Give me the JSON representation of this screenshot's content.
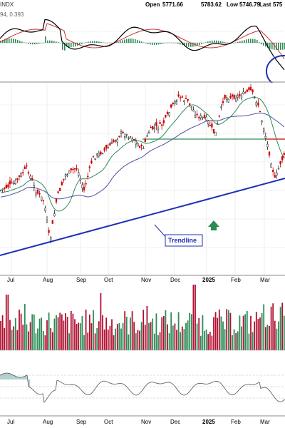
{
  "header": {
    "symbol": "INDX",
    "open_label": "Open",
    "open": "5771.66",
    "high_value": "5783.62",
    "low_label": "Low",
    "low": "5746.79",
    "last_label": "Last",
    "last": "575",
    "macd_readout": "94, 0.393"
  },
  "colors": {
    "macd_line": "#000000",
    "signal_line": "#cc3333",
    "histogram": "#2e8b57",
    "up_candle": "#1a1a1a",
    "down_candle": "#cc0000",
    "ma_short": "#2e8b57",
    "ma_long": "#5050a0",
    "trendline": "#1f2fb5",
    "support_line": "#2e8b57",
    "resistance_line": "#cc0000",
    "volume_up": "#2e8b57",
    "volume_down": "#b01030",
    "circle": "#1f2fb5"
  },
  "annotations": {
    "trendline_label": "Trendline"
  },
  "months": [
    "Jul",
    "Aug",
    "Sep",
    "Oct",
    "Nov",
    "Dec",
    "2025",
    "Feb",
    "Mar"
  ],
  "chart_data": [
    {
      "panel": "macd",
      "type": "line",
      "series": [],
      "note": "MACD panel: MACD line, signal line and histogram"
    },
    {
      "panel": "price",
      "type": "candlestick",
      "x": [
        "Jul",
        "Aug",
        "Sep",
        "Oct",
        "Nov",
        "Dec",
        "2025",
        "Feb",
        "Mar"
      ],
      "series": [
        {
          "values": [
            5590,
            5430,
            5610,
            5760,
            5720,
            6040,
            5900,
            6080,
            5620
          ]
        }
      ],
      "ma_short": [
        5510,
        5470,
        5550,
        5700,
        5760,
        5960,
        5930,
        6000,
        5700
      ],
      "ma_long": [
        5300,
        5350,
        5420,
        5560,
        5650,
        5820,
        5870,
        5940,
        5780
      ],
      "support_level": 5870,
      "trendline": {
        "from": [
          "Jun",
          5120
        ],
        "to": [
          "Mar",
          5640
        ]
      }
    },
    {
      "panel": "volume",
      "type": "bar",
      "categories": [
        "Jul",
        "Aug",
        "Sep",
        "Oct",
        "Nov",
        "Dec",
        "2025",
        "Feb",
        "Mar"
      ],
      "series": [
        {
          "values": [
            0.55,
            0.65,
            0.6,
            0.5,
            0.7,
            1.0,
            0.5,
            0.6,
            0.7
          ]
        }
      ]
    },
    {
      "panel": "oscillator",
      "type": "line",
      "series": [
        {
          "values": [
            0.6,
            0.2,
            0.65,
            0.7,
            0.5,
            0.4,
            0.55,
            0.7,
            0.15
          ]
        }
      ]
    }
  ]
}
